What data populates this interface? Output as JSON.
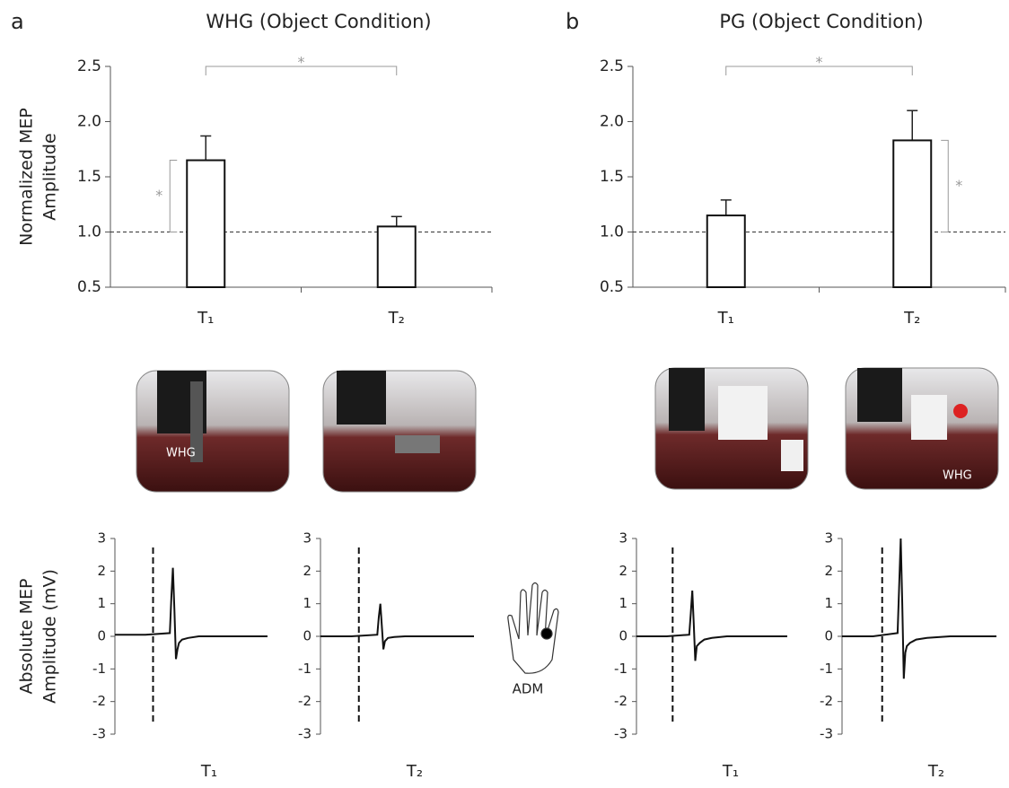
{
  "panel_labels": [
    "a",
    "b"
  ],
  "photo_labels": [
    "WHG",
    "WHG"
  ],
  "hand_label": "ADM",
  "chart_data": [
    {
      "type": "bar",
      "title": "WHG (Object Condition)",
      "ylabel": [
        "Normalized MEP",
        "Amplitude"
      ],
      "categories": [
        "T₁",
        "T₂"
      ],
      "values": [
        1.65,
        1.05
      ],
      "errors": [
        0.22,
        0.09
      ],
      "ylim": [
        0.5,
        2.5
      ],
      "yticks": [
        {
          "value": 0.5,
          "label": "0.5"
        },
        {
          "value": 1,
          "label": "1.0"
        },
        {
          "value": 1.5,
          "label": "1.5"
        },
        {
          "value": 2,
          "label": "2.0"
        },
        {
          "value": 2.5,
          "label": "2.5"
        }
      ],
      "reference_line": 1,
      "significance": [
        {
          "between": [
            0,
            1
          ],
          "label": "*"
        },
        {
          "bar": 0,
          "side": "left",
          "label": "*"
        }
      ]
    },
    {
      "type": "bar",
      "title": "PG (Object Condition)",
      "categories": [
        "T₁",
        "T₂"
      ],
      "values": [
        1.15,
        1.83
      ],
      "errors": [
        0.14,
        0.27
      ],
      "ylim": [
        0.5,
        2.5
      ],
      "yticks": [
        {
          "value": 0.5,
          "label": "0.5"
        },
        {
          "value": 1,
          "label": "1.0"
        },
        {
          "value": 1.5,
          "label": "1.5"
        },
        {
          "value": 2,
          "label": "2.0"
        },
        {
          "value": 2.5,
          "label": "2.5"
        }
      ],
      "reference_line": 1,
      "significance": [
        {
          "between": [
            0,
            1
          ],
          "label": "*"
        },
        {
          "bar": 1,
          "side": "right",
          "label": "*"
        }
      ]
    },
    {
      "type": "line",
      "ylabel": [
        "Absolute MEP",
        "Amplitude (mV)"
      ],
      "xlabel": "T₁",
      "x": [
        0,
        20,
        36,
        37,
        38,
        39,
        40,
        41,
        42,
        44,
        48,
        55,
        100
      ],
      "values": [
        0.05,
        0.05,
        0.1,
        1.2,
        2.1,
        0.8,
        -0.7,
        -0.4,
        -0.2,
        -0.1,
        -0.05,
        0,
        0
      ],
      "xlim": [
        0,
        100
      ],
      "ylim": [
        -3,
        3
      ],
      "yticks": [
        -3,
        -2,
        -1,
        0,
        1,
        2,
        3
      ],
      "marker_x": 25
    },
    {
      "type": "line",
      "xlabel": "T₂",
      "x": [
        0,
        20,
        37,
        38,
        39,
        40,
        41,
        42,
        44,
        48,
        55,
        100
      ],
      "values": [
        0,
        0,
        0.05,
        0.6,
        1.0,
        0.3,
        -0.4,
        -0.15,
        -0.05,
        -0.02,
        0,
        0
      ],
      "xlim": [
        0,
        100
      ],
      "ylim": [
        -3,
        3
      ],
      "yticks": [
        -3,
        -2,
        -1,
        0,
        1,
        2,
        3
      ],
      "marker_x": 25
    },
    {
      "type": "line",
      "xlabel": "T₁",
      "x": [
        0,
        20,
        35,
        36,
        37,
        38,
        39,
        40,
        42,
        45,
        50,
        60,
        100
      ],
      "values": [
        0,
        0,
        0.05,
        0.7,
        1.4,
        0.4,
        -0.75,
        -0.3,
        -0.2,
        -0.1,
        -0.05,
        0,
        0
      ],
      "xlim": [
        0,
        100
      ],
      "ylim": [
        -3,
        3
      ],
      "yticks": [
        -3,
        -2,
        -1,
        0,
        1,
        2,
        3
      ],
      "marker_x": 24
    },
    {
      "type": "line",
      "xlabel": "T₂",
      "x": [
        0,
        20,
        36,
        37,
        38,
        39,
        40,
        41,
        42,
        44,
        48,
        55,
        70,
        100
      ],
      "values": [
        0,
        0,
        0.1,
        1.5,
        3.0,
        1.0,
        -1.3,
        -0.5,
        -0.3,
        -0.2,
        -0.1,
        -0.05,
        0,
        0
      ],
      "xlim": [
        0,
        100
      ],
      "ylim": [
        -3,
        3
      ],
      "yticks": [
        -3,
        -2,
        -1,
        0,
        1,
        2,
        3
      ],
      "marker_x": 26
    }
  ]
}
